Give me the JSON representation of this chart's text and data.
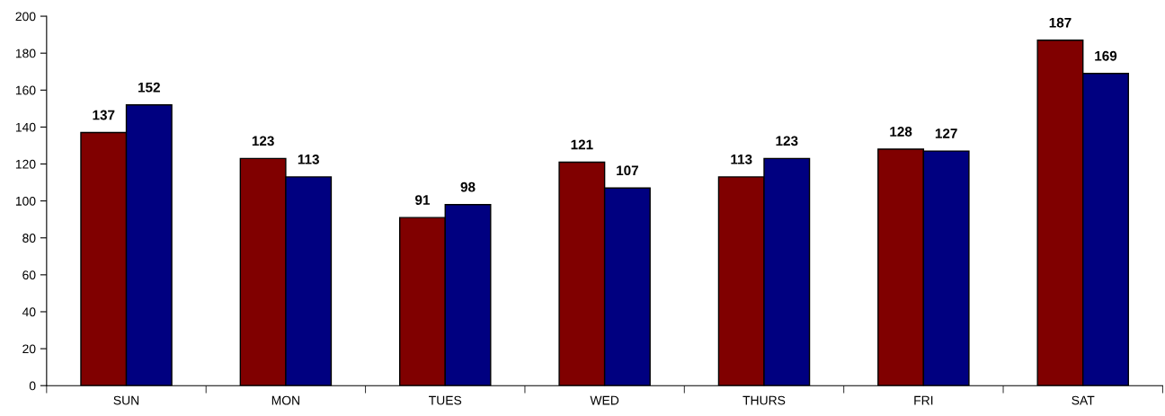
{
  "chart_data": {
    "type": "bar",
    "categories": [
      "SUN",
      "MON",
      "TUES",
      "WED",
      "THURS",
      "FRI",
      "SAT"
    ],
    "series": [
      {
        "color": "#800000",
        "values": [
          137,
          123,
          91,
          121,
          113,
          128,
          187
        ]
      },
      {
        "color": "#000080",
        "values": [
          152,
          113,
          98,
          107,
          123,
          127,
          169
        ]
      }
    ],
    "ylim": [
      0,
      200
    ],
    "yticks": [
      0,
      20,
      40,
      60,
      80,
      100,
      120,
      140,
      160,
      180,
      200
    ],
    "data_labels": true,
    "grid": false,
    "legend": false
  }
}
